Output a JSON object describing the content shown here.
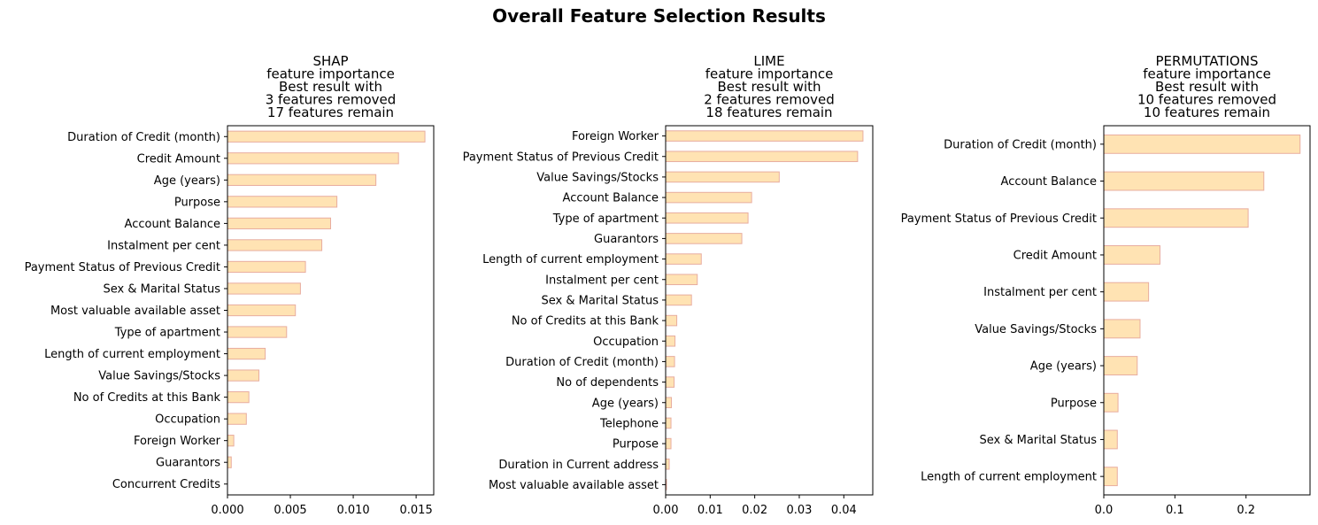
{
  "suptitle": "Overall Feature Selection Results",
  "chart_data": [
    {
      "type": "bar",
      "orientation": "horizontal",
      "title_lines": [
        "SHAP",
        "feature importance",
        "Best result with",
        "3 features removed",
        "17 features remain"
      ],
      "categories": [
        "Duration of Credit (month)",
        "Credit Amount",
        "Age (years)",
        "Purpose",
        "Account Balance",
        "Instalment per cent",
        "Payment Status of Previous Credit",
        "Sex & Marital Status",
        "Most valuable available asset",
        "Type of apartment",
        "Length of current employment",
        "Value Savings/Stocks",
        "No of Credits at this Bank",
        "Occupation",
        "Foreign Worker",
        "Guarantors",
        "Concurrent Credits"
      ],
      "values": [
        0.0157,
        0.0136,
        0.0118,
        0.0087,
        0.0082,
        0.0075,
        0.0062,
        0.0058,
        0.0054,
        0.0047,
        0.003,
        0.0025,
        0.0017,
        0.0015,
        0.0005,
        0.0003,
        0.0
      ],
      "xlim": [
        0,
        0.0164
      ],
      "xticks": [
        0,
        0.005,
        0.01,
        0.015
      ],
      "xtick_labels": [
        "0.000",
        "0.005",
        "0.010",
        "0.015"
      ],
      "grid": false
    },
    {
      "type": "bar",
      "orientation": "horizontal",
      "title_lines": [
        "LIME",
        "feature importance",
        "Best result with",
        "2 features removed",
        "18 features remain"
      ],
      "categories": [
        "Foreign Worker",
        "Payment Status of Previous Credit",
        "Value Savings/Stocks",
        "Account Balance",
        "Type of apartment",
        "Guarantors",
        "Length of current employment",
        "Instalment per cent",
        "Sex & Marital Status",
        "No of Credits at this Bank",
        "Occupation",
        "Duration of Credit (month)",
        "No of dependents",
        "Age (years)",
        "Telephone",
        "Purpose",
        "Duration in Current address",
        "Most valuable available asset"
      ],
      "values": [
        0.0443,
        0.0431,
        0.0255,
        0.0193,
        0.0185,
        0.0171,
        0.008,
        0.0071,
        0.0058,
        0.0025,
        0.0021,
        0.002,
        0.0019,
        0.0013,
        0.0012,
        0.0012,
        0.0008,
        0.0002
      ],
      "xlim": [
        0,
        0.0465
      ],
      "xticks": [
        0,
        0.01,
        0.02,
        0.03,
        0.04
      ],
      "xtick_labels": [
        "0.00",
        "0.01",
        "0.02",
        "0.03",
        "0.04"
      ],
      "grid": false
    },
    {
      "type": "bar",
      "orientation": "horizontal",
      "title_lines": [
        "PERMUTATIONS",
        "feature importance",
        "Best result with",
        "10 features removed",
        "10 features remain"
      ],
      "categories": [
        "Duration of Credit (month)",
        "Account Balance",
        "Payment Status of Previous Credit",
        "Credit Amount",
        "Instalment per cent",
        "Value Savings/Stocks",
        "Age (years)",
        "Purpose",
        "Sex & Marital Status",
        "Length of current employment"
      ],
      "values": [
        0.276,
        0.225,
        0.203,
        0.079,
        0.063,
        0.051,
        0.047,
        0.02,
        0.019,
        0.019
      ],
      "xlim": [
        0,
        0.29
      ],
      "xticks": [
        0,
        0.1,
        0.2
      ],
      "xtick_labels": [
        "0.0",
        "0.1",
        "0.2"
      ],
      "grid": false
    }
  ],
  "colors": {
    "bar_fill": "#ffe3b3",
    "bar_edge": "#e8ad9f",
    "axis": "#000000"
  }
}
